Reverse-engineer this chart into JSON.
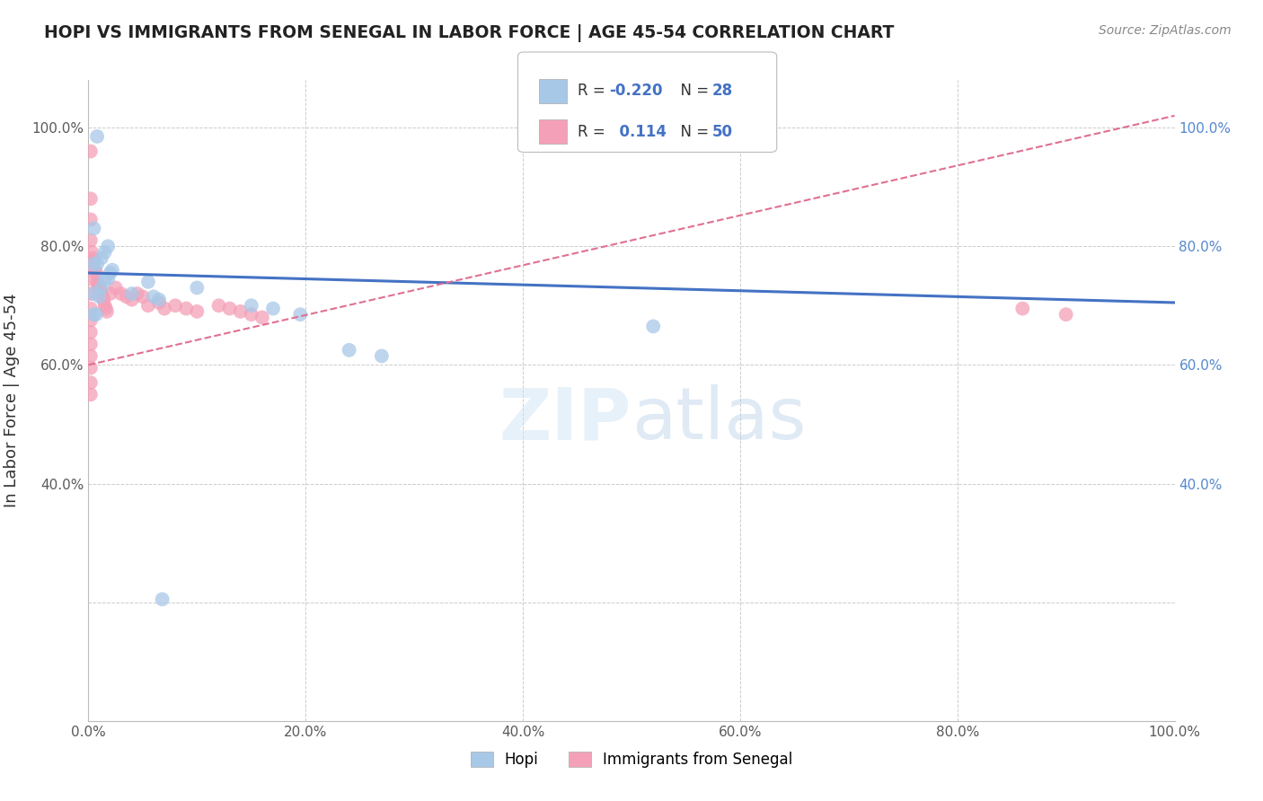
{
  "title": "HOPI VS IMMIGRANTS FROM SENEGAL IN LABOR FORCE | AGE 45-54 CORRELATION CHART",
  "source": "Source: ZipAtlas.com",
  "ylabel": "In Labor Force | Age 45-54",
  "watermark": "ZIPatlas",
  "xlim": [
    0.0,
    1.0
  ],
  "ylim": [
    0.0,
    1.08
  ],
  "xticks": [
    0.0,
    0.2,
    0.4,
    0.6,
    0.8,
    1.0
  ],
  "yticks": [
    0.0,
    0.2,
    0.4,
    0.6,
    0.8,
    1.0
  ],
  "xtick_labels": [
    "0.0%",
    "20.0%",
    "40.0%",
    "60.0%",
    "80.0%",
    "100.0%"
  ],
  "ytick_labels_left": [
    "",
    "",
    "40.0%",
    "60.0%",
    "80.0%",
    "100.0%"
  ],
  "ytick_labels_right": [
    "",
    "",
    "40.0%",
    "60.0%",
    "80.0%",
    "100.0%"
  ],
  "hopi_color": "#a8c8e8",
  "senegal_color": "#f4a0b8",
  "hopi_line_color": "#4472c4",
  "senegal_line_color": "#e07090",
  "legend_R_color": "#4472c4",
  "hopi_R": -0.22,
  "hopi_N": 28,
  "senegal_R": 0.114,
  "senegal_N": 50,
  "hopi_trend": [
    0.0,
    0.755,
    1.0,
    0.705
  ],
  "senegal_trend": [
    0.0,
    0.6,
    1.0,
    1.02
  ],
  "hopi_points": [
    [
      0.008,
      0.985
    ],
    [
      0.005,
      0.83
    ],
    [
      0.005,
      0.77
    ],
    [
      0.008,
      0.77
    ],
    [
      0.012,
      0.78
    ],
    [
      0.015,
      0.79
    ],
    [
      0.018,
      0.8
    ],
    [
      0.005,
      0.72
    ],
    [
      0.005,
      0.685
    ],
    [
      0.007,
      0.685
    ],
    [
      0.01,
      0.715
    ],
    [
      0.012,
      0.73
    ],
    [
      0.015,
      0.745
    ],
    [
      0.018,
      0.745
    ],
    [
      0.02,
      0.755
    ],
    [
      0.022,
      0.76
    ],
    [
      0.04,
      0.72
    ],
    [
      0.055,
      0.74
    ],
    [
      0.06,
      0.715
    ],
    [
      0.065,
      0.71
    ],
    [
      0.1,
      0.73
    ],
    [
      0.15,
      0.7
    ],
    [
      0.17,
      0.695
    ],
    [
      0.195,
      0.685
    ],
    [
      0.24,
      0.625
    ],
    [
      0.27,
      0.615
    ],
    [
      0.52,
      0.665
    ],
    [
      0.068,
      0.205
    ]
  ],
  "senegal_points": [
    [
      0.002,
      0.96
    ],
    [
      0.002,
      0.88
    ],
    [
      0.002,
      0.845
    ],
    [
      0.002,
      0.81
    ],
    [
      0.002,
      0.775
    ],
    [
      0.002,
      0.745
    ],
    [
      0.002,
      0.72
    ],
    [
      0.002,
      0.695
    ],
    [
      0.002,
      0.675
    ],
    [
      0.002,
      0.655
    ],
    [
      0.002,
      0.635
    ],
    [
      0.002,
      0.615
    ],
    [
      0.002,
      0.595
    ],
    [
      0.002,
      0.57
    ],
    [
      0.002,
      0.55
    ],
    [
      0.003,
      0.79
    ],
    [
      0.004,
      0.78
    ],
    [
      0.005,
      0.775
    ],
    [
      0.006,
      0.76
    ],
    [
      0.007,
      0.755
    ],
    [
      0.008,
      0.74
    ],
    [
      0.009,
      0.735
    ],
    [
      0.01,
      0.73
    ],
    [
      0.011,
      0.725
    ],
    [
      0.012,
      0.72
    ],
    [
      0.013,
      0.715
    ],
    [
      0.014,
      0.71
    ],
    [
      0.015,
      0.7
    ],
    [
      0.016,
      0.695
    ],
    [
      0.017,
      0.69
    ],
    [
      0.02,
      0.72
    ],
    [
      0.025,
      0.73
    ],
    [
      0.03,
      0.72
    ],
    [
      0.035,
      0.715
    ],
    [
      0.04,
      0.71
    ],
    [
      0.045,
      0.72
    ],
    [
      0.05,
      0.715
    ],
    [
      0.055,
      0.7
    ],
    [
      0.065,
      0.705
    ],
    [
      0.07,
      0.695
    ],
    [
      0.08,
      0.7
    ],
    [
      0.09,
      0.695
    ],
    [
      0.1,
      0.69
    ],
    [
      0.12,
      0.7
    ],
    [
      0.13,
      0.695
    ],
    [
      0.14,
      0.69
    ],
    [
      0.15,
      0.685
    ],
    [
      0.16,
      0.68
    ],
    [
      0.86,
      0.695
    ],
    [
      0.9,
      0.685
    ]
  ]
}
